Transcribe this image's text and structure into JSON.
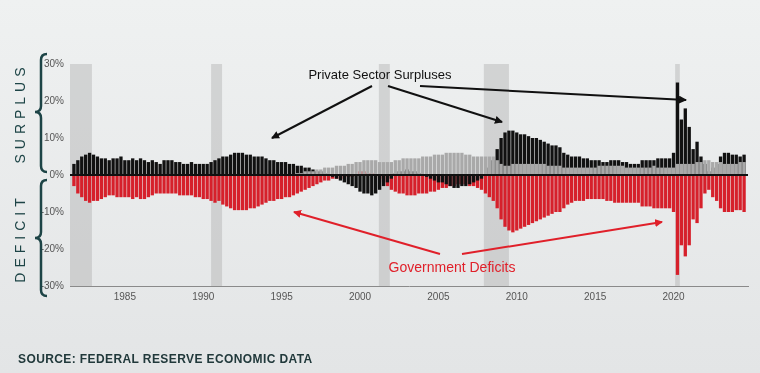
{
  "chart_data": {
    "type": "bar",
    "side_labels": [
      "SURPLUS",
      "DEFICIT"
    ],
    "annotations": [
      "Private Sector Surpluses",
      "Government Deficits"
    ],
    "source": "SOURCE: FEDERAL RESERVE ECONOMIC DATA",
    "x": [
      1981.75,
      1982,
      1982.25,
      1982.5,
      1982.75,
      1983,
      1983.25,
      1983.5,
      1983.75,
      1984,
      1984.25,
      1984.5,
      1984.75,
      1985,
      1985.25,
      1985.5,
      1985.75,
      1986,
      1986.25,
      1986.5,
      1986.75,
      1987,
      1987.25,
      1987.5,
      1987.75,
      1988,
      1988.25,
      1988.5,
      1988.75,
      1989,
      1989.25,
      1989.5,
      1989.75,
      1990,
      1990.25,
      1990.5,
      1990.75,
      1991,
      1991.25,
      1991.5,
      1991.75,
      1992,
      1992.25,
      1992.5,
      1992.75,
      1993,
      1993.25,
      1993.5,
      1993.75,
      1994,
      1994.25,
      1994.5,
      1994.75,
      1995,
      1995.25,
      1995.5,
      1995.75,
      1996,
      1996.25,
      1996.5,
      1996.75,
      1997,
      1997.25,
      1997.5,
      1997.75,
      1998,
      1998.25,
      1998.5,
      1998.75,
      1999,
      1999.25,
      1999.5,
      1999.75,
      2000,
      2000.25,
      2000.5,
      2000.75,
      2001,
      2001.25,
      2001.5,
      2001.75,
      2002,
      2002.25,
      2002.5,
      2002.75,
      2003,
      2003.25,
      2003.5,
      2003.75,
      2004,
      2004.25,
      2004.5,
      2004.75,
      2005,
      2005.25,
      2005.5,
      2005.75,
      2006,
      2006.25,
      2006.5,
      2006.75,
      2007,
      2007.25,
      2007.5,
      2007.75,
      2008,
      2008.25,
      2008.5,
      2008.75,
      2009,
      2009.25,
      2009.5,
      2009.75,
      2010,
      2010.25,
      2010.5,
      2010.75,
      2011,
      2011.25,
      2011.5,
      2011.75,
      2012,
      2012.25,
      2012.5,
      2012.75,
      2013,
      2013.25,
      2013.5,
      2013.75,
      2014,
      2014.25,
      2014.5,
      2014.75,
      2015,
      2015.25,
      2015.5,
      2015.75,
      2016,
      2016.25,
      2016.5,
      2016.75,
      2017,
      2017.25,
      2017.5,
      2017.75,
      2018,
      2018.25,
      2018.5,
      2018.75,
      2019,
      2019.25,
      2019.5,
      2019.75,
      2020,
      2020.25,
      2020.5,
      2020.75,
      2021,
      2021.25,
      2021.5,
      2021.75,
      2022,
      2022.25,
      2022.5,
      2022.75,
      2023,
      2023.25,
      2023.5,
      2023.75,
      2024,
      2024.25,
      2024.5
    ],
    "series": [
      {
        "color": "#a9a9a9",
        "values": [
          0,
          0,
          0,
          0,
          0,
          0,
          0,
          0,
          0,
          0,
          0,
          0,
          0,
          0,
          0,
          0,
          0,
          0,
          0,
          0,
          0,
          0,
          0,
          0,
          0,
          0,
          0,
          0,
          0,
          0,
          0,
          0,
          0,
          0,
          0,
          0,
          0,
          0,
          0,
          0,
          0,
          0,
          0,
          0,
          0,
          0,
          0,
          0,
          0,
          0,
          0,
          0,
          0,
          0,
          0,
          0,
          0,
          0.5,
          0.5,
          1,
          1,
          1,
          1.5,
          1.5,
          2,
          2,
          2,
          2.5,
          2.5,
          2.5,
          3,
          3,
          3.5,
          3.5,
          4,
          4,
          4,
          4,
          3.5,
          3.5,
          3.5,
          3.5,
          4,
          4,
          4.5,
          4.5,
          4.5,
          4.5,
          4.5,
          5,
          5,
          5,
          5.5,
          5.5,
          5.5,
          6,
          6,
          6,
          6,
          6,
          5.5,
          5.5,
          5,
          5,
          5,
          5,
          5,
          5,
          4,
          3,
          2.5,
          2.5,
          3,
          3,
          3,
          3,
          3,
          3,
          3,
          3,
          3,
          2.5,
          2.5,
          2.5,
          2.5,
          2,
          2,
          2,
          2,
          2,
          2,
          2,
          2,
          2,
          2.5,
          2.5,
          2.5,
          2.5,
          2.5,
          2.5,
          2.5,
          2,
          2,
          2,
          2,
          2,
          2,
          2,
          2.5,
          2,
          2,
          2,
          2,
          2,
          3,
          3,
          3,
          3,
          3,
          3.5,
          3.5,
          4,
          4,
          3.5,
          3.5,
          3.5,
          3,
          3,
          3,
          3,
          3.5,
          3.5
        ]
      },
      {
        "color": "#111111",
        "values": [
          3,
          4,
          5,
          5.5,
          6,
          5.5,
          5,
          4.5,
          4.5,
          4,
          4.5,
          4.5,
          5,
          4,
          4,
          4.5,
          4,
          4.5,
          4,
          3.5,
          4,
          3.5,
          3,
          4,
          4,
          4,
          3.5,
          3.5,
          3,
          3,
          3.5,
          3,
          3,
          3,
          3,
          3.5,
          4,
          4.5,
          5,
          5,
          5.5,
          6,
          6,
          6,
          5.5,
          5.5,
          5,
          5,
          5,
          4.5,
          4,
          4,
          3.5,
          3.5,
          3.5,
          3,
          3,
          2.5,
          2.5,
          2,
          2,
          1.5,
          1,
          1,
          0.5,
          0,
          -0.5,
          -1,
          -1.5,
          -2,
          -2.5,
          -3,
          -3.5,
          -4.5,
          -5,
          -5,
          -5.5,
          -5,
          -4,
          -3,
          -2,
          -1,
          0.5,
          1,
          1,
          1.5,
          1,
          1,
          0.5,
          0,
          -0.5,
          -1,
          -1.5,
          -2,
          -2,
          -2.5,
          -3,
          -3.5,
          -3.5,
          -3,
          -3,
          -2.5,
          -2,
          -1.5,
          -1,
          0,
          2,
          4,
          7,
          10,
          11.5,
          12,
          12,
          11.5,
          11,
          11,
          10.5,
          10,
          10,
          9.5,
          9,
          8.5,
          8,
          8,
          7.5,
          6,
          5.5,
          5,
          5,
          5,
          4.5,
          4.5,
          4,
          4,
          4,
          3.5,
          3.5,
          4,
          4,
          4,
          3.5,
          3.5,
          3,
          3,
          3,
          4,
          4,
          4,
          4,
          4.5,
          4.5,
          4.5,
          4.5,
          6,
          25,
          15,
          18,
          13,
          7,
          9,
          5,
          3,
          1,
          2,
          3,
          5,
          6,
          6,
          5.5,
          5.5,
          5,
          5.5
        ]
      },
      {
        "color": "#d6202b",
        "values": [
          -3,
          -5,
          -6,
          -7,
          -7.5,
          -7,
          -7,
          -6.5,
          -6,
          -5.5,
          -5.5,
          -6,
          -6,
          -6,
          -6,
          -6.5,
          -6,
          -6.5,
          -6.5,
          -6,
          -5.5,
          -5,
          -5,
          -5,
          -5,
          -5,
          -5,
          -5.5,
          -5.5,
          -5.5,
          -5.5,
          -6,
          -6,
          -6.5,
          -6.5,
          -7,
          -7.5,
          -7,
          -8,
          -8.5,
          -9,
          -9.5,
          -9.5,
          -9.5,
          -9.5,
          -9,
          -9,
          -8.5,
          -8,
          -7.5,
          -7,
          -7,
          -6.5,
          -6.5,
          -6,
          -6,
          -5.5,
          -5,
          -4.5,
          -4,
          -3.5,
          -3,
          -2.5,
          -2,
          -1.5,
          -1.5,
          -1,
          -1,
          -1,
          -1,
          -0.5,
          -0.5,
          0,
          1,
          1,
          0.5,
          0.5,
          0,
          -1,
          -2,
          -3,
          -4,
          -4.5,
          -5,
          -5,
          -5.5,
          -5.5,
          -5.5,
          -5,
          -5,
          -5,
          -4.5,
          -4.5,
          -4,
          -3.5,
          -3.5,
          -3,
          -3,
          -2.5,
          -2.5,
          -2.5,
          -3,
          -3,
          -3.5,
          -4,
          -5,
          -6,
          -7,
          -9,
          -12,
          -14,
          -15,
          -15.5,
          -15,
          -14.5,
          -14,
          -13.5,
          -13,
          -12.5,
          -12,
          -11.5,
          -11,
          -10.5,
          -10,
          -10,
          -9,
          -8,
          -7.5,
          -7,
          -7,
          -7,
          -6.5,
          -6.5,
          -6.5,
          -6.5,
          -6.5,
          -7,
          -7,
          -7.5,
          -7.5,
          -7.5,
          -7.5,
          -7.5,
          -7.5,
          -7.5,
          -8.5,
          -8.5,
          -8.5,
          -9,
          -9,
          -9,
          -9,
          -9,
          -10,
          -27,
          -19,
          -22,
          -19,
          -12,
          -13,
          -9,
          -5,
          -4,
          -6,
          -7,
          -9,
          -10,
          -10,
          -10,
          -9.5,
          -9.5,
          -10
        ]
      }
    ],
    "recessions": [
      [
        1981.5,
        1982.9
      ],
      [
        1990.5,
        1991.2
      ],
      [
        2001.2,
        2001.9
      ],
      [
        2007.9,
        2009.5
      ],
      [
        2020.1,
        2020.4
      ]
    ],
    "xlim": [
      1981.5,
      2024.75
    ],
    "xticks": [
      1985,
      1990,
      1995,
      2000,
      2005,
      2010,
      2015,
      2020
    ],
    "ylim": [
      -30,
      30
    ],
    "yticks": [
      {
        "value": -30,
        "label": "-30%"
      },
      {
        "value": -20,
        "label": "-20%"
      },
      {
        "value": -10,
        "label": "-10%"
      },
      {
        "value": 0,
        "label": "0%"
      },
      {
        "value": 10,
        "label": "10%"
      },
      {
        "value": 20,
        "label": "20%"
      },
      {
        "value": 30,
        "label": "30%"
      }
    ],
    "grid": false
  }
}
